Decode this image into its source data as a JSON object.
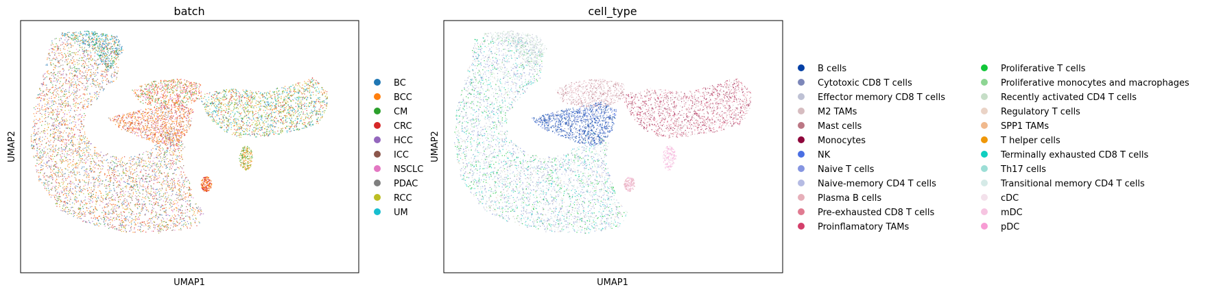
{
  "chart_data": [
    {
      "type": "scatter",
      "title": "batch",
      "xlabel": "UMAP1",
      "ylabel": "UMAP2",
      "grid": false,
      "legend_placement": "right",
      "legend_columns": 1,
      "categories": [
        {
          "name": "BC",
          "color": "#1f77b4"
        },
        {
          "name": "BCC",
          "color": "#ff7f0e"
        },
        {
          "name": "CM",
          "color": "#2ca02c"
        },
        {
          "name": "CRC",
          "color": "#d62728"
        },
        {
          "name": "HCC",
          "color": "#9467bd"
        },
        {
          "name": "ICC",
          "color": "#8c564b"
        },
        {
          "name": "NSCLC",
          "color": "#e377c2"
        },
        {
          "name": "PDAC",
          "color": "#7f7f7f"
        },
        {
          "name": "RCC",
          "color": "#bcbd22"
        },
        {
          "name": "UM",
          "color": "#17becf"
        }
      ]
    },
    {
      "type": "scatter",
      "title": "cell_type",
      "xlabel": "UMAP1",
      "ylabel": "UMAP2",
      "grid": false,
      "legend_placement": "right",
      "legend_columns": 2,
      "categories": [
        {
          "name": "B cells",
          "color": "#023fa5"
        },
        {
          "name": "Cytotoxic CD8 T cells",
          "color": "#7d87b9"
        },
        {
          "name": "Effector memory CD8 T cells",
          "color": "#bec1d4"
        },
        {
          "name": "M2 TAMs",
          "color": "#d6bcc0"
        },
        {
          "name": "Mast cells",
          "color": "#bb7784"
        },
        {
          "name": "Monocytes",
          "color": "#8e063b"
        },
        {
          "name": "NK",
          "color": "#4a6fe3"
        },
        {
          "name": "Naive T cells",
          "color": "#8595e1"
        },
        {
          "name": "Naive-memory CD4 T cells",
          "color": "#b5bbe3"
        },
        {
          "name": "Plasma B cells",
          "color": "#e6afb9"
        },
        {
          "name": "Pre-exhausted CD8 T cells",
          "color": "#e07b91"
        },
        {
          "name": "Proinflamatory TAMs",
          "color": "#d33f6a"
        },
        {
          "name": "Proliferative T cells",
          "color": "#11c638"
        },
        {
          "name": "Proliferative monocytes and macrophages",
          "color": "#8dd593"
        },
        {
          "name": "Recently activated CD4 T cells",
          "color": "#c6dec7"
        },
        {
          "name": "Regulatory T cells",
          "color": "#ead3c6"
        },
        {
          "name": "SPP1 TAMs",
          "color": "#f0b98d"
        },
        {
          "name": "T helper cells",
          "color": "#ef9708"
        },
        {
          "name": "Terminally exhausted CD8 T cells",
          "color": "#0fcfc0"
        },
        {
          "name": "Th17 cells",
          "color": "#9cded6"
        },
        {
          "name": "Transitional memory CD4 T cells",
          "color": "#d5eae7"
        },
        {
          "name": "cDC",
          "color": "#f3e1eb"
        },
        {
          "name": "mDC",
          "color": "#f6c4e1"
        },
        {
          "name": "pDC",
          "color": "#f79cd4"
        }
      ]
    }
  ]
}
